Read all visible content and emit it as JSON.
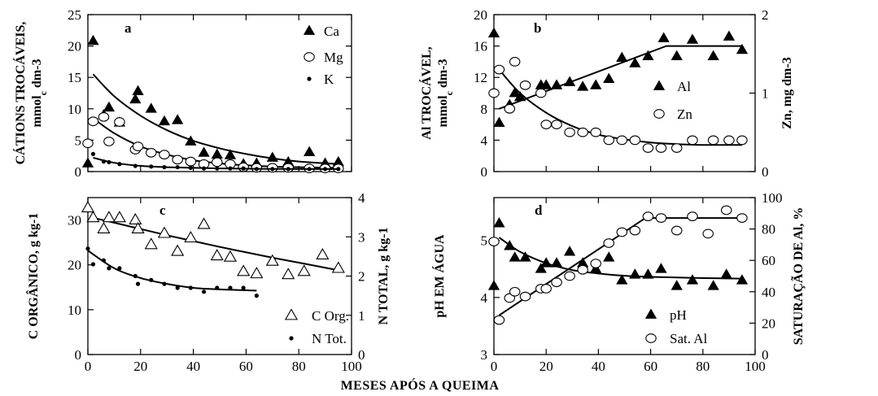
{
  "figure": {
    "xlabel": "MESES APÓS A QUEIMA"
  },
  "chart_data": [
    {
      "type": "scatter",
      "panel_label": "a",
      "ylabel_line1": "CÁTIONS TROCÁVEIS,",
      "ylabel_line2_pre": "mmol",
      "ylabel_line2_sub": "c",
      "ylabel_line2_post": " dm-3",
      "xlim": [
        0,
        100
      ],
      "ylim": [
        0,
        25
      ],
      "xticks": [
        0,
        20,
        40,
        60,
        80,
        100
      ],
      "yticks": [
        0,
        5,
        10,
        15,
        20,
        25
      ],
      "x_tick_labels": false,
      "series": [
        {
          "name": "Ca",
          "marker": "triangle",
          "x": [
            0,
            2,
            6,
            8,
            12,
            18,
            19,
            24,
            29,
            34,
            39,
            44,
            49,
            54,
            59,
            64,
            70,
            76,
            84,
            90,
            95
          ],
          "y": [
            1.3,
            20.8,
            9,
            10.2,
            7.8,
            11.5,
            12.8,
            10,
            8,
            8.2,
            4.8,
            3,
            2.7,
            2.6,
            1.2,
            1.3,
            2.2,
            1.5,
            3.1,
            1.3,
            1.5
          ],
          "fit": {
            "x": [
              2,
              10,
              20,
              30,
              40,
              50,
              60,
              70,
              80,
              95
            ],
            "y": [
              15.5,
              12,
              8.9,
              6.6,
              4.9,
              3.7,
              2.8,
              2.1,
              1.6,
              1.2
            ]
          }
        },
        {
          "name": "Mg",
          "marker": "circle",
          "x": [
            0,
            2,
            6,
            8,
            12,
            18,
            19,
            24,
            29,
            34,
            39,
            44,
            49,
            54,
            59,
            64,
            70,
            76,
            84,
            90,
            95
          ],
          "y": [
            4.5,
            8,
            8.7,
            4.8,
            7.9,
            3.5,
            4,
            3,
            2.7,
            1.9,
            1.6,
            1.2,
            1.5,
            1.2,
            0.7,
            0.6,
            0.6,
            0.6,
            0.5,
            0.5,
            0.5
          ],
          "fit": {
            "x": [
              2,
              10,
              20,
              30,
              40,
              50,
              60,
              70,
              80,
              95
            ],
            "y": [
              8.5,
              6.1,
              4,
              2.7,
              1.8,
              1.3,
              1,
              0.8,
              0.7,
              0.6
            ]
          }
        },
        {
          "name": "K",
          "marker": "dot",
          "x": [
            0,
            2,
            6,
            8,
            12,
            18,
            24,
            29,
            34,
            39,
            44,
            49,
            54,
            59,
            64,
            70,
            76,
            84,
            90,
            95
          ],
          "y": [
            1.5,
            2.8,
            1.6,
            1.5,
            1.2,
            0.9,
            0.8,
            0.7,
            0.7,
            0.6,
            0.5,
            0.5,
            0.5,
            0.5,
            0.4,
            0.4,
            0.4,
            0.4,
            0.4,
            0.4
          ],
          "fit": {
            "x": [
              2,
              10,
              20,
              30,
              40,
              50,
              60,
              70,
              80,
              95
            ],
            "y": [
              2.2,
              1.4,
              0.9,
              0.7,
              0.6,
              0.5,
              0.45,
              0.42,
              0.41,
              0.4
            ]
          }
        }
      ]
    },
    {
      "type": "scatter",
      "panel_label": "b",
      "ylabel_line1": "Al TROCÁVEL,",
      "ylabel_line2_pre": "mmol",
      "ylabel_line2_sub": "c",
      "ylabel_line2_post": " dm-3",
      "y2label": "Zn, mg dm-3",
      "xlim": [
        0,
        100
      ],
      "ylim": [
        0,
        20
      ],
      "y2lim": [
        0,
        2
      ],
      "xticks": [
        0,
        20,
        40,
        60,
        80,
        100
      ],
      "yticks": [
        0,
        4,
        8,
        12,
        16,
        20
      ],
      "y2ticks": [
        0,
        1,
        2
      ],
      "x_tick_labels": false,
      "series": [
        {
          "name": "Al",
          "marker": "triangle",
          "axis": "left",
          "x": [
            0,
            2,
            6,
            8,
            10,
            18,
            20,
            24,
            29,
            34,
            39,
            44,
            49,
            54,
            59,
            65,
            70,
            76,
            84,
            90,
            95
          ],
          "y": [
            17.6,
            6.2,
            8.5,
            10,
            9.5,
            11,
            11,
            11,
            11.4,
            10.8,
            11,
            11.8,
            14.5,
            13.8,
            14.7,
            17,
            14.7,
            16.8,
            14.7,
            17.2,
            15.5
          ],
          "fit": {
            "x": [
              2,
              66,
              95
            ],
            "y": [
              8,
              16,
              16
            ]
          }
        },
        {
          "name": "Zn",
          "marker": "circle",
          "axis": "right",
          "x": [
            0,
            2,
            6,
            8,
            12,
            18,
            20,
            24,
            29,
            34,
            39,
            44,
            49,
            54,
            59,
            64,
            70,
            76,
            84,
            90,
            95
          ],
          "y": [
            1,
            1.3,
            0.8,
            1.4,
            1.1,
            1,
            0.6,
            0.6,
            0.5,
            0.5,
            0.5,
            0.4,
            0.4,
            0.4,
            0.3,
            0.3,
            0.3,
            0.4,
            0.4,
            0.4,
            0.4
          ],
          "fit": {
            "x": [
              2,
              10,
              20,
              30,
              40,
              50,
              60,
              70,
              80,
              95
            ],
            "y": [
              1.3,
              1,
              0.75,
              0.58,
              0.47,
              0.41,
              0.37,
              0.35,
              0.34,
              0.34
            ]
          }
        }
      ]
    },
    {
      "type": "scatter",
      "panel_label": "c",
      "ylabel": "C ORGÂNICO, g kg-1",
      "y2label": "N TOTAL, g kg-1",
      "xlim": [
        0,
        100
      ],
      "ylim": [
        0,
        35
      ],
      "y2lim": [
        0,
        4
      ],
      "xticks": [
        0,
        20,
        40,
        60,
        80,
        100
      ],
      "yticks": [
        0,
        10,
        20,
        30
      ],
      "y2ticks": [
        0,
        1,
        2,
        3,
        4
      ],
      "x_tick_labels": true,
      "series": [
        {
          "name": "C Org.",
          "marker": "open-triangle",
          "axis": "left",
          "x": [
            0,
            2,
            6,
            8,
            12,
            18,
            19,
            24,
            29,
            34,
            39,
            44,
            49,
            54,
            59,
            64,
            70,
            76,
            82,
            89,
            95
          ],
          "y": [
            32.7,
            30.5,
            28,
            30.5,
            30.5,
            30,
            28,
            24.5,
            27,
            23,
            26,
            29,
            22,
            21.7,
            18.5,
            18,
            20.8,
            17.8,
            18.5,
            22.2,
            19.2
          ],
          "fit": {
            "x": [
              2,
              10,
              20,
              30,
              40,
              50,
              60,
              70,
              80,
              95
            ],
            "y": [
              30.5,
              29.4,
              28,
              26.6,
              25.3,
              24,
              22.8,
              21.6,
              20.5,
              18.8
            ]
          }
        },
        {
          "name": "N Tot.",
          "marker": "dot",
          "axis": "right",
          "x": [
            0,
            2,
            6,
            8,
            12,
            18,
            19,
            24,
            29,
            34,
            39,
            44,
            49,
            54,
            59,
            64
          ],
          "y": [
            2.7,
            2.3,
            2.4,
            2.2,
            2.2,
            2,
            1.8,
            1.9,
            1.8,
            1.7,
            1.7,
            1.6,
            1.7,
            1.7,
            1.7,
            1.5
          ],
          "fit": {
            "x": [
              0,
              10,
              20,
              30,
              40,
              50,
              64
            ],
            "y": [
              2.65,
              2.2,
              1.95,
              1.8,
              1.7,
              1.66,
              1.63
            ]
          }
        }
      ]
    },
    {
      "type": "scatter",
      "panel_label": "d",
      "ylabel": "pH EM ÁGUA",
      "y2label": "SATURAÇÃO DE Al, %",
      "xlim": [
        0,
        100
      ],
      "ylim": [
        3,
        5.75
      ],
      "y2lim": [
        0,
        100
      ],
      "xticks": [
        0,
        20,
        40,
        60,
        80,
        100
      ],
      "yticks": [
        3,
        4,
        5
      ],
      "y2ticks": [
        0,
        20,
        40,
        60,
        80,
        100
      ],
      "x_tick_labels": true,
      "series": [
        {
          "name": "pH",
          "marker": "triangle",
          "axis": "left",
          "x": [
            0,
            2,
            6,
            8,
            12,
            18,
            20,
            24,
            29,
            34,
            39,
            44,
            49,
            54,
            59,
            64,
            70,
            76,
            84,
            89,
            95
          ],
          "y": [
            4.2,
            5.3,
            4.9,
            4.7,
            4.7,
            4.5,
            4.6,
            4.6,
            4.8,
            4.6,
            4.5,
            4.7,
            4.3,
            4.4,
            4.4,
            4.5,
            4.2,
            4.3,
            4.2,
            4.4,
            4.3
          ],
          "fit": {
            "x": [
              2,
              10,
              20,
              30,
              40,
              50,
              60,
              70,
              80,
              95
            ],
            "y": [
              5.05,
              4.8,
              4.6,
              4.48,
              4.42,
              4.38,
              4.36,
              4.35,
              4.34,
              4.33
            ]
          }
        },
        {
          "name": "Sat. Al",
          "marker": "circle",
          "axis": "right",
          "x": [
            0,
            2,
            6,
            8,
            12,
            18,
            20,
            24,
            29,
            34,
            39,
            44,
            49,
            54,
            59,
            64,
            70,
            76,
            82,
            89,
            95
          ],
          "y": [
            72,
            22,
            36,
            40,
            37,
            42,
            42,
            46,
            50,
            54,
            58,
            71,
            78,
            79,
            88,
            87,
            79,
            88,
            77,
            92,
            87
          ],
          "fit": {
            "x": [
              2,
              58,
              95
            ],
            "y": [
              25,
              87,
              87
            ]
          }
        }
      ]
    }
  ]
}
